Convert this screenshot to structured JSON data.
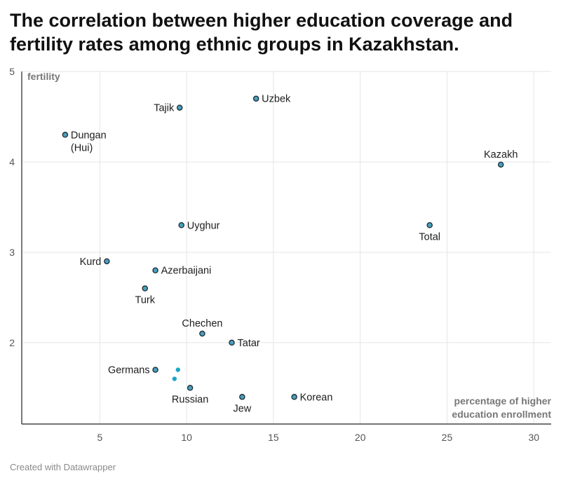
{
  "header": {
    "title_line1": "The correlation between higher education coverage and",
    "title_line2": "fertility rates among ethnic groups in Kazakhstan."
  },
  "footer": {
    "credit": "Created with Datawrapper"
  },
  "colors": {
    "point_fill": "#4a9fbd",
    "point_stroke": "#1a2a33",
    "accent_point": "#1aa7c9",
    "grid": "#e5e5e5",
    "axis": "#222222",
    "axis_label": "#777777",
    "tick_label": "#555555"
  },
  "chart_data": {
    "type": "scatter",
    "title": "The correlation between higher education coverage and fertility rates among ethnic groups in Kazakhstan.",
    "xlabel": "percentage of higher education enrollment",
    "xlabel_lines": [
      "percentage of higher",
      "education enrollment"
    ],
    "ylabel": "fertility",
    "xlim": [
      0.5,
      31
    ],
    "ylim": [
      1.1,
      5
    ],
    "xticks": [
      5,
      10,
      15,
      20,
      25,
      30
    ],
    "yticks": [
      2,
      3,
      4,
      5
    ],
    "grid": true,
    "points": [
      {
        "label": "Uzbek",
        "x": 14.0,
        "y": 4.7,
        "pos": "right"
      },
      {
        "label": "Tajik",
        "x": 9.6,
        "y": 4.6,
        "pos": "left"
      },
      {
        "label": "Dungan (Hui)",
        "lines": [
          "Dungan",
          "(Hui)"
        ],
        "x": 3.0,
        "y": 4.3,
        "pos": "right-two-line"
      },
      {
        "label": "Kazakh",
        "x": 28.1,
        "y": 3.97,
        "pos": "above"
      },
      {
        "label": "Uyghur",
        "x": 9.7,
        "y": 3.3,
        "pos": "right"
      },
      {
        "label": "Total",
        "x": 24.0,
        "y": 3.3,
        "pos": "below"
      },
      {
        "label": "Kurd",
        "x": 5.4,
        "y": 2.9,
        "pos": "left"
      },
      {
        "label": "Azerbaijani",
        "x": 8.2,
        "y": 2.8,
        "pos": "right"
      },
      {
        "label": "Turk",
        "x": 7.6,
        "y": 2.6,
        "pos": "below"
      },
      {
        "label": "Chechen",
        "x": 10.9,
        "y": 2.1,
        "pos": "above"
      },
      {
        "label": "Tatar",
        "x": 12.6,
        "y": 2.0,
        "pos": "right"
      },
      {
        "label": "Germans",
        "x": 8.2,
        "y": 1.7,
        "pos": "left"
      },
      {
        "label": "Russian",
        "x": 10.2,
        "y": 1.5,
        "pos": "below"
      },
      {
        "label": "Jew",
        "x": 13.2,
        "y": 1.4,
        "pos": "below"
      },
      {
        "label": "Korean",
        "x": 16.2,
        "y": 1.4,
        "pos": "right"
      }
    ],
    "unlabeled_points": [
      {
        "x": 9.5,
        "y": 1.7
      },
      {
        "x": 9.3,
        "y": 1.6
      }
    ]
  }
}
